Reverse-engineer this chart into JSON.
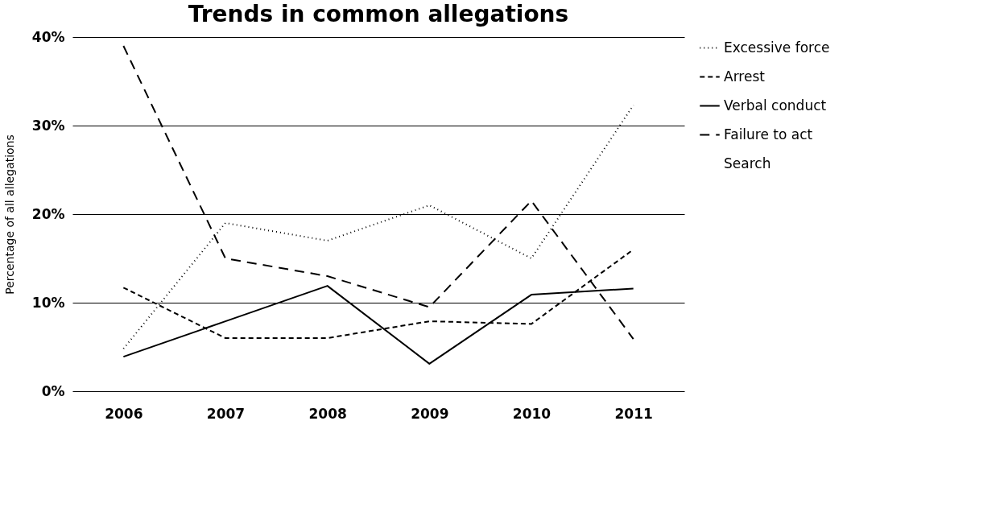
{
  "chart_data": {
    "type": "line",
    "title": "Trends in common allegations",
    "ylabel": "Percentage of all allegations",
    "categories": [
      "2006",
      "2007",
      "2008",
      "2009",
      "2010",
      "2011"
    ],
    "series": [
      {
        "name": "Excessive force",
        "color": "#000000",
        "line_style": "dotted",
        "values": [
          4.8,
          19,
          17,
          21,
          15,
          32.3
        ]
      },
      {
        "name": "Arrest",
        "color": "#000000",
        "line_style": "dashed",
        "values": [
          11.7,
          6,
          6,
          7.9,
          7.6,
          16
        ]
      },
      {
        "name": "Verbal conduct",
        "color": "#000000",
        "line_style": "solid",
        "values": [
          3.9,
          7.9,
          11.9,
          3.1,
          10.9,
          11.6
        ]
      },
      {
        "name": "Failure to act",
        "color": "#000000",
        "line_style": "dashed",
        "values": [
          39,
          15,
          13,
          9.5,
          21.5,
          5.9
        ]
      },
      {
        "name": "Search",
        "values": [
          null,
          null,
          null,
          null,
          null,
          null
        ]
      }
    ],
    "ylim": [
      0,
      40
    ],
    "yticks": [
      {
        "value": 0,
        "label": "0%"
      },
      {
        "value": 10,
        "label": "10%"
      },
      {
        "value": 20,
        "label": "20%"
      },
      {
        "value": 30,
        "label": "30%"
      },
      {
        "value": 40,
        "label": "40%"
      }
    ],
    "grid": "y",
    "legend": "right",
    "marker": "none"
  }
}
